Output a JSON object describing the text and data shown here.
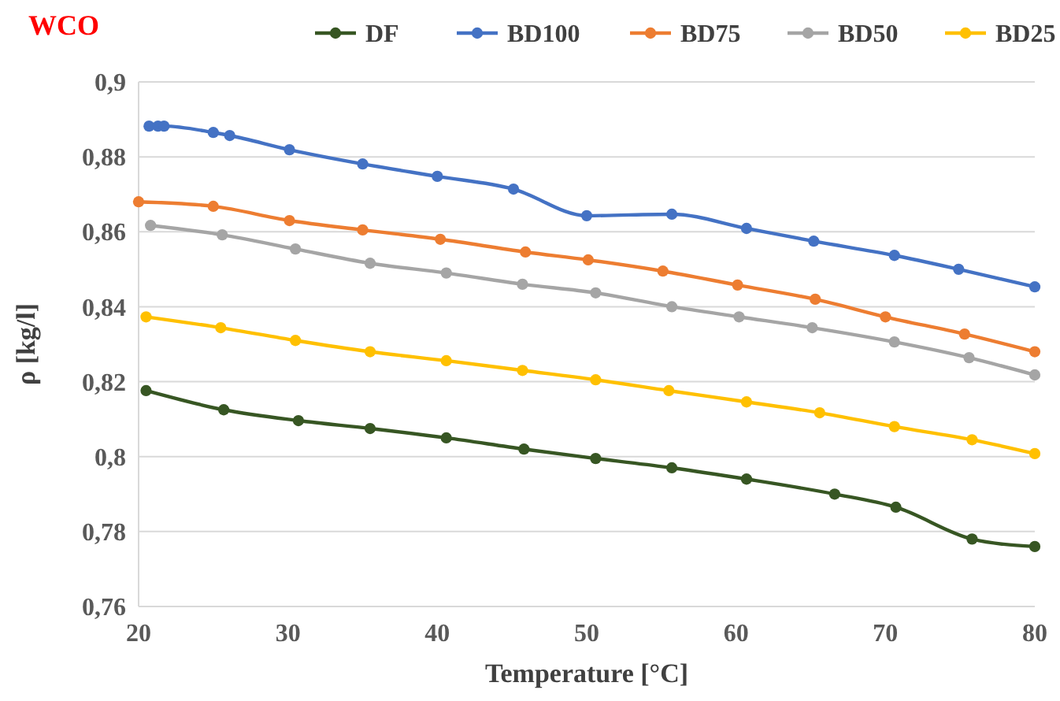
{
  "chart_data": {
    "type": "line",
    "title": "WCO",
    "xlabel": "Temperature [°C]",
    "ylabel": "ρ [kg/l]",
    "xlim": [
      20,
      80
    ],
    "xticks": [
      20,
      30,
      40,
      50,
      60,
      70,
      80
    ],
    "ylim": [
      0.76,
      0.9
    ],
    "yticks": [
      {
        "value": 0.76,
        "label": "0,76"
      },
      {
        "value": 0.78,
        "label": "0,78"
      },
      {
        "value": 0.8,
        "label": "0,8"
      },
      {
        "value": 0.82,
        "label": "0,82"
      },
      {
        "value": 0.84,
        "label": "0,84"
      },
      {
        "value": 0.86,
        "label": "0,86"
      },
      {
        "value": 0.88,
        "label": "0,88"
      },
      {
        "value": 0.9,
        "label": "0,9"
      }
    ],
    "grid": "y",
    "legend": "top",
    "marker": "circle",
    "line_style": "solid",
    "series": [
      {
        "name": "DF",
        "color": "#375623",
        "x": [
          20.5,
          25.7,
          30.7,
          35.5,
          40.6,
          45.8,
          50.6,
          55.7,
          60.7,
          66.6,
          70.7,
          75.8,
          80
        ],
        "values": [
          0.8176,
          0.8125,
          0.8096,
          0.8075,
          0.805,
          0.802,
          0.7995,
          0.797,
          0.794,
          0.79,
          0.7865,
          0.778,
          0.776
        ]
      },
      {
        "name": "BD100",
        "color": "#4472c4",
        "x": [
          20.7,
          21.3,
          21.7,
          25,
          26.1,
          30.1,
          35,
          40,
          45.1,
          50,
          55.7,
          60.7,
          65.2,
          70.6,
          74.9,
          80
        ],
        "values": [
          0.8882,
          0.8882,
          0.8882,
          0.8865,
          0.8857,
          0.8819,
          0.8781,
          0.8748,
          0.8714,
          0.8643,
          0.8647,
          0.8609,
          0.8575,
          0.8537,
          0.85,
          0.8453
        ]
      },
      {
        "name": "BD75",
        "color": "#ed7d31",
        "x": [
          20,
          25,
          30.1,
          35,
          40.2,
          45.9,
          50.1,
          55.1,
          60.1,
          65.3,
          70,
          75.3,
          80
        ],
        "values": [
          0.868,
          0.8668,
          0.863,
          0.8605,
          0.858,
          0.8546,
          0.8525,
          0.8495,
          0.8458,
          0.842,
          0.8373,
          0.8327,
          0.828
        ]
      },
      {
        "name": "BD50",
        "color": "#a5a5a5",
        "x": [
          20.8,
          25.6,
          30.5,
          35.5,
          40.6,
          45.7,
          50.6,
          55.7,
          60.2,
          65.1,
          70.6,
          75.6,
          80
        ],
        "values": [
          0.8617,
          0.8592,
          0.8554,
          0.8516,
          0.849,
          0.846,
          0.8437,
          0.84,
          0.8373,
          0.8344,
          0.8306,
          0.8264,
          0.8218
        ]
      },
      {
        "name": "BD25",
        "color": "#ffc000",
        "x": [
          20.5,
          25.5,
          30.5,
          35.5,
          40.6,
          45.7,
          50.6,
          55.5,
          60.7,
          65.6,
          70.6,
          75.8,
          80
        ],
        "values": [
          0.8373,
          0.8344,
          0.831,
          0.828,
          0.8256,
          0.823,
          0.8205,
          0.8176,
          0.8146,
          0.8117,
          0.808,
          0.8045,
          0.8008
        ]
      }
    ]
  }
}
